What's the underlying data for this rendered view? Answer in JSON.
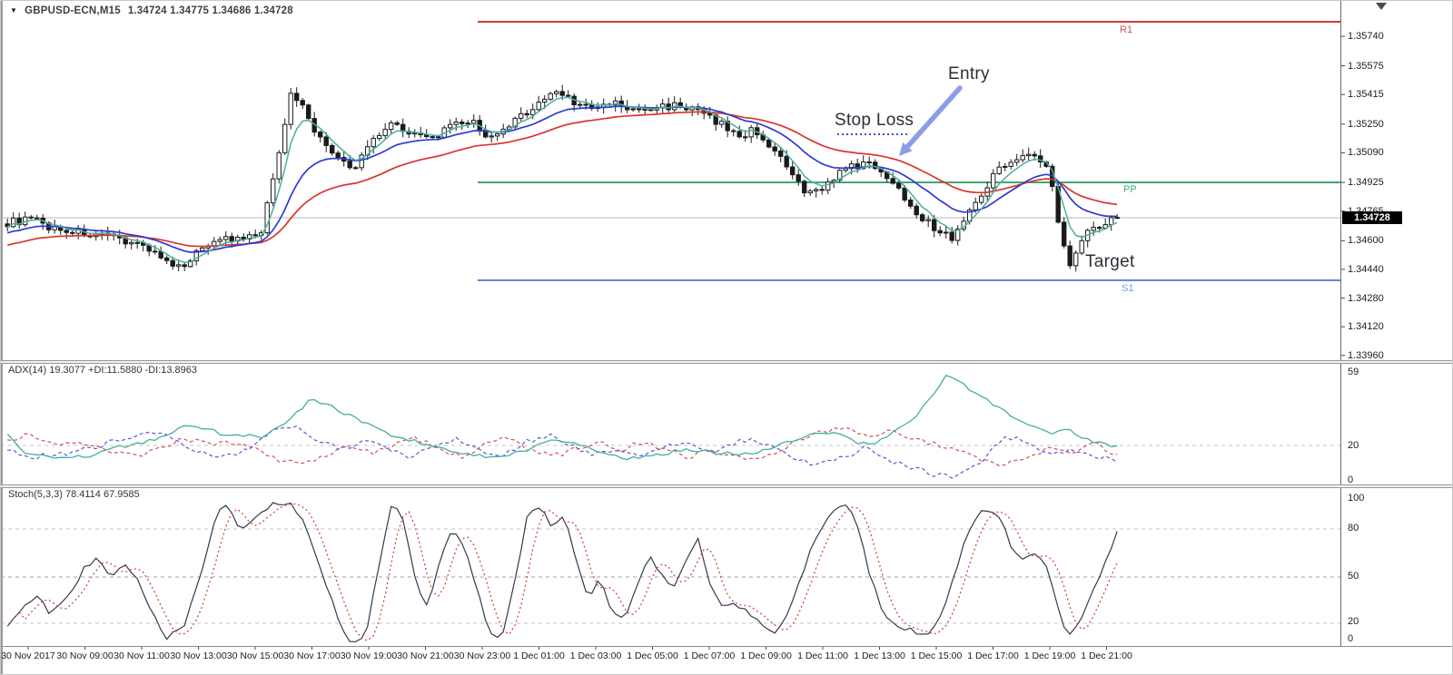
{
  "window": {
    "symbol": "GBPUSD-ECN,M15",
    "quotes": "1.34724 1.34775 1.34686 1.34728"
  },
  "annotations": {
    "entry": "Entry",
    "stop_loss": "Stop Loss",
    "target": "Target"
  },
  "indicators": {
    "adx_label": "ADX(14) 19.3077 +DI:11.5880 -DI:13.8963",
    "stoch_label": "Stoch(5,3,3) 78.4114 67.9585"
  },
  "colors": {
    "ma_fast_teal": "#4cae9e",
    "ma_mid_blue": "#2f3bd0",
    "ma_slow_red": "#d9362e",
    "r1_red": "#cf3a3a",
    "pp_green": "#18934f",
    "s1_blue": "#3a6bd8",
    "bid_gray": "#b9b9b9",
    "adx_teal": "#45ae9c",
    "di_plus_blue": "#5858d8",
    "di_minus_red": "#d05454",
    "stoch_k": "#383850",
    "stoch_d": "#d04848",
    "arrow": "#8c9ce8",
    "stop_dotted": "#4050c0"
  },
  "chart_data": {
    "main": {
      "type": "candlestick",
      "symbol": "GBPUSD-ECN",
      "timeframe": "M15",
      "quote": {
        "open": 1.34724,
        "high": 1.34775,
        "low": 1.34686,
        "close": 1.34728
      },
      "bid": 1.34728,
      "bid_text": "1.34728",
      "y_axis_ticks": [
        "1.35740",
        "1.35575",
        "1.35415",
        "1.35250",
        "1.35090",
        "1.34925",
        "1.34765",
        "1.34600",
        "1.34440",
        "1.34280",
        "1.34120",
        "1.33960"
      ],
      "pivots": {
        "R1": {
          "label": "R1",
          "price": 1.35821
        },
        "PP": {
          "label": "PP",
          "price": 1.34925
        },
        "S1": {
          "label": "S1",
          "price": 1.34379
        }
      },
      "close_path": [
        [
          5,
          1.347
        ],
        [
          30,
          1.3472
        ],
        [
          55,
          1.3467
        ],
        [
          80,
          1.3465
        ],
        [
          110,
          1.3462
        ],
        [
          140,
          1.346
        ],
        [
          165,
          1.3455
        ],
        [
          190,
          1.3443
        ],
        [
          210,
          1.3452
        ],
        [
          235,
          1.3462
        ],
        [
          260,
          1.346
        ],
        [
          285,
          1.3464
        ],
        [
          300,
          1.3502
        ],
        [
          318,
          1.3543
        ],
        [
          332,
          1.3534
        ],
        [
          348,
          1.3517
        ],
        [
          368,
          1.3507
        ],
        [
          385,
          1.3498
        ],
        [
          405,
          1.3516
        ],
        [
          428,
          1.3526
        ],
        [
          448,
          1.3521
        ],
        [
          468,
          1.3516
        ],
        [
          492,
          1.3523
        ],
        [
          515,
          1.3527
        ],
        [
          540,
          1.3516
        ],
        [
          565,
          1.3527
        ],
        [
          590,
          1.3537
        ],
        [
          612,
          1.3544
        ],
        [
          630,
          1.3537
        ],
        [
          650,
          1.3533
        ],
        [
          672,
          1.3537
        ],
        [
          695,
          1.3532
        ],
        [
          718,
          1.3534
        ],
        [
          742,
          1.3536
        ],
        [
          765,
          1.3532
        ],
        [
          788,
          1.3526
        ],
        [
          810,
          1.3518
        ],
        [
          828,
          1.3522
        ],
        [
          845,
          1.3513
        ],
        [
          865,
          1.3499
        ],
        [
          885,
          1.3485
        ],
        [
          905,
          1.3491
        ],
        [
          925,
          1.3499
        ],
        [
          945,
          1.3503
        ],
        [
          965,
          1.3501
        ],
        [
          985,
          1.3489
        ],
        [
          1005,
          1.3477
        ],
        [
          1025,
          1.3467
        ],
        [
          1045,
          1.3462
        ],
        [
          1062,
          1.3474
        ],
        [
          1080,
          1.3489
        ],
        [
          1100,
          1.3502
        ],
        [
          1120,
          1.3508
        ],
        [
          1140,
          1.3506
        ],
        [
          1152,
          1.3499
        ],
        [
          1165,
          1.3462
        ],
        [
          1175,
          1.3448
        ],
        [
          1188,
          1.3462
        ],
        [
          1202,
          1.3468
        ],
        [
          1215,
          1.347
        ],
        [
          1228,
          1.34728
        ]
      ]
    },
    "adx": {
      "type": "line",
      "name": "ADX(14)",
      "adx_value": 19.3077,
      "plus_di": 11.588,
      "minus_di": 13.8963,
      "range": [
        0,
        59
      ],
      "level": 20,
      "y_axis_ticks": [
        "59",
        "20",
        "0"
      ],
      "series": {
        "adx": [
          [
            0,
            28
          ],
          [
            25,
            16
          ],
          [
            60,
            13
          ],
          [
            95,
            14
          ],
          [
            125,
            19
          ],
          [
            160,
            22
          ],
          [
            200,
            30
          ],
          [
            225,
            29
          ],
          [
            250,
            25
          ],
          [
            285,
            25
          ],
          [
            310,
            32
          ],
          [
            340,
            45
          ],
          [
            365,
            40
          ],
          [
            395,
            33
          ],
          [
            425,
            26
          ],
          [
            455,
            22
          ],
          [
            480,
            19
          ],
          [
            510,
            15
          ],
          [
            545,
            14
          ],
          [
            575,
            17
          ],
          [
            605,
            24
          ],
          [
            625,
            22
          ],
          [
            655,
            17
          ],
          [
            685,
            13
          ],
          [
            715,
            14
          ],
          [
            750,
            18
          ],
          [
            785,
            16
          ],
          [
            815,
            15
          ],
          [
            845,
            18
          ],
          [
            875,
            24
          ],
          [
            900,
            27
          ],
          [
            920,
            26
          ],
          [
            945,
            21
          ],
          [
            965,
            22
          ],
          [
            985,
            28
          ],
          [
            1010,
            38
          ],
          [
            1040,
            58
          ],
          [
            1060,
            52
          ],
          [
            1080,
            45
          ],
          [
            1105,
            38
          ],
          [
            1130,
            30
          ],
          [
            1155,
            27
          ],
          [
            1170,
            29
          ],
          [
            1190,
            24
          ],
          [
            1215,
            20
          ],
          [
            1228,
            19.3
          ]
        ],
        "plus_di": [
          [
            0,
            18
          ],
          [
            35,
            14
          ],
          [
            70,
            16
          ],
          [
            105,
            20
          ],
          [
            140,
            25
          ],
          [
            170,
            27
          ],
          [
            195,
            22
          ],
          [
            220,
            16
          ],
          [
            245,
            14
          ],
          [
            270,
            18
          ],
          [
            295,
            28
          ],
          [
            320,
            30
          ],
          [
            345,
            24
          ],
          [
            375,
            18
          ],
          [
            400,
            22
          ],
          [
            425,
            18
          ],
          [
            450,
            14
          ],
          [
            475,
            20
          ],
          [
            500,
            24
          ],
          [
            525,
            18
          ],
          [
            550,
            14
          ],
          [
            575,
            22
          ],
          [
            600,
            26
          ],
          [
            625,
            20
          ],
          [
            650,
            15
          ],
          [
            675,
            18
          ],
          [
            700,
            14
          ],
          [
            725,
            18
          ],
          [
            750,
            22
          ],
          [
            775,
            16
          ],
          [
            800,
            20
          ],
          [
            825,
            24
          ],
          [
            850,
            18
          ],
          [
            875,
            12
          ],
          [
            900,
            10
          ],
          [
            925,
            13
          ],
          [
            950,
            20
          ],
          [
            975,
            12
          ],
          [
            1000,
            8
          ],
          [
            1030,
            4
          ],
          [
            1050,
            3
          ],
          [
            1075,
            10
          ],
          [
            1095,
            22
          ],
          [
            1115,
            25
          ],
          [
            1140,
            18
          ],
          [
            1160,
            15
          ],
          [
            1180,
            18
          ],
          [
            1205,
            14
          ],
          [
            1228,
            11.6
          ]
        ],
        "minus_di": [
          [
            0,
            22
          ],
          [
            30,
            26
          ],
          [
            55,
            20
          ],
          [
            85,
            22
          ],
          [
            115,
            18
          ],
          [
            145,
            14
          ],
          [
            175,
            18
          ],
          [
            200,
            24
          ],
          [
            230,
            20
          ],
          [
            255,
            22
          ],
          [
            280,
            18
          ],
          [
            305,
            12
          ],
          [
            330,
            10
          ],
          [
            355,
            14
          ],
          [
            380,
            20
          ],
          [
            405,
            16
          ],
          [
            430,
            20
          ],
          [
            455,
            24
          ],
          [
            480,
            18
          ],
          [
            505,
            14
          ],
          [
            530,
            20
          ],
          [
            555,
            24
          ],
          [
            580,
            18
          ],
          [
            605,
            14
          ],
          [
            630,
            18
          ],
          [
            655,
            22
          ],
          [
            680,
            18
          ],
          [
            705,
            22
          ],
          [
            730,
            18
          ],
          [
            755,
            14
          ],
          [
            780,
            18
          ],
          [
            805,
            14
          ],
          [
            830,
            12
          ],
          [
            855,
            18
          ],
          [
            880,
            24
          ],
          [
            905,
            28
          ],
          [
            930,
            30
          ],
          [
            955,
            24
          ],
          [
            980,
            28
          ],
          [
            1005,
            24
          ],
          [
            1030,
            20
          ],
          [
            1055,
            16
          ],
          [
            1080,
            12
          ],
          [
            1105,
            10
          ],
          [
            1130,
            14
          ],
          [
            1155,
            20
          ],
          [
            1175,
            16
          ],
          [
            1200,
            22
          ],
          [
            1215,
            18
          ],
          [
            1228,
            13.9
          ]
        ]
      }
    },
    "stoch": {
      "type": "line",
      "name": "Stoch(5,3,3)",
      "k_value": 78.4114,
      "d_value": 67.9585,
      "range": [
        0,
        100
      ],
      "levels": [
        80,
        50,
        20
      ],
      "y_axis_ticks": [
        "100",
        "80",
        "50",
        "20",
        "0"
      ],
      "series": {
        "k": [
          [
            0,
            15
          ],
          [
            20,
            28
          ],
          [
            38,
            38
          ],
          [
            52,
            25
          ],
          [
            70,
            35
          ],
          [
            90,
            55
          ],
          [
            105,
            62
          ],
          [
            120,
            48
          ],
          [
            135,
            58
          ],
          [
            150,
            45
          ],
          [
            165,
            25
          ],
          [
            180,
            10
          ],
          [
            200,
            18
          ],
          [
            215,
            45
          ],
          [
            235,
            90
          ],
          [
            248,
            96
          ],
          [
            262,
            78
          ],
          [
            275,
            85
          ],
          [
            295,
            96
          ],
          [
            315,
            97
          ],
          [
            330,
            85
          ],
          [
            350,
            55
          ],
          [
            370,
            20
          ],
          [
            385,
            5
          ],
          [
            400,
            12
          ],
          [
            415,
            60
          ],
          [
            428,
            95
          ],
          [
            440,
            88
          ],
          [
            455,
            45
          ],
          [
            468,
            30
          ],
          [
            482,
            60
          ],
          [
            495,
            80
          ],
          [
            508,
            70
          ],
          [
            520,
            45
          ],
          [
            535,
            15
          ],
          [
            548,
            8
          ],
          [
            562,
            40
          ],
          [
            578,
            90
          ],
          [
            592,
            95
          ],
          [
            605,
            80
          ],
          [
            618,
            88
          ],
          [
            632,
            60
          ],
          [
            645,
            35
          ],
          [
            658,
            50
          ],
          [
            670,
            28
          ],
          [
            685,
            22
          ],
          [
            700,
            45
          ],
          [
            712,
            65
          ],
          [
            725,
            50
          ],
          [
            738,
            42
          ],
          [
            752,
            60
          ],
          [
            765,
            75
          ],
          [
            778,
            45
          ],
          [
            790,
            30
          ],
          [
            805,
            32
          ],
          [
            818,
            28
          ],
          [
            832,
            20
          ],
          [
            848,
            12
          ],
          [
            865,
            25
          ],
          [
            880,
            50
          ],
          [
            895,
            75
          ],
          [
            912,
            90
          ],
          [
            928,
            96
          ],
          [
            940,
            85
          ],
          [
            955,
            50
          ],
          [
            970,
            25
          ],
          [
            985,
            18
          ],
          [
            1000,
            15
          ],
          [
            1015,
            12
          ],
          [
            1030,
            20
          ],
          [
            1045,
            45
          ],
          [
            1060,
            75
          ],
          [
            1075,
            90
          ],
          [
            1088,
            92
          ],
          [
            1100,
            85
          ],
          [
            1112,
            65
          ],
          [
            1125,
            60
          ],
          [
            1138,
            65
          ],
          [
            1150,
            55
          ],
          [
            1162,
            30
          ],
          [
            1172,
            12
          ],
          [
            1185,
            20
          ],
          [
            1200,
            40
          ],
          [
            1215,
            60
          ],
          [
            1228,
            78.4
          ]
        ]
      }
    },
    "time_axis": {
      "labels": [
        "30 Nov 2017",
        "30 Nov 09:00",
        "30 Nov 11:00",
        "30 Nov 13:00",
        "30 Nov 15:00",
        "30 Nov 17:00",
        "30 Nov 19:00",
        "30 Nov 21:00",
        "30 Nov 23:00",
        "1 Dec 01:00",
        "1 Dec 03:00",
        "1 Dec 05:00",
        "1 Dec 07:00",
        "1 Dec 09:00",
        "1 Dec 11:00",
        "1 Dec 13:00",
        "1 Dec 15:00",
        "1 Dec 17:00",
        "1 Dec 19:00",
        "1 Dec 21:00"
      ],
      "start_x": 30,
      "spacing": 62.5
    }
  }
}
